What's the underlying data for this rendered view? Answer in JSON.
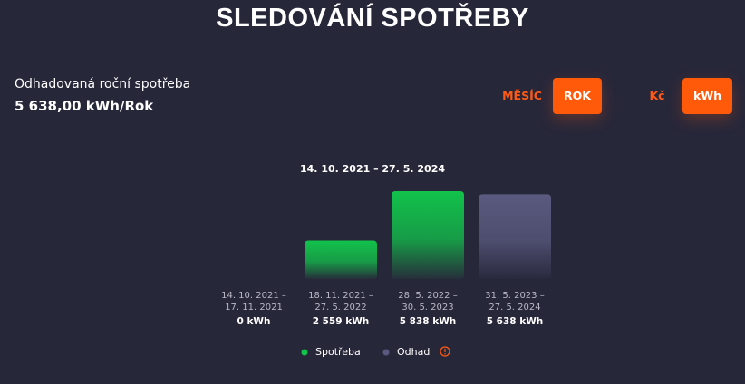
{
  "header": {
    "title": "SLEDOVÁNÍ SPOTŘEBY"
  },
  "summary": {
    "label": "Odhadovaná roční spotřeba",
    "value": "5 638,00 kWh/Rok"
  },
  "toggles": [
    [
      {
        "label": "MĚSÍC",
        "active": false
      },
      {
        "label": "ROK",
        "active": true
      }
    ],
    [
      {
        "label": "Kč",
        "active": false
      },
      {
        "label": "kWh",
        "active": true
      }
    ]
  ],
  "chart_data": {
    "type": "bar",
    "subtitle": "14. 10. 2021 – 27. 5. 2024",
    "categories": [
      "14. 10. 2021 –\n17. 11. 2021",
      "18. 11. 2021 –\n27. 5. 2022",
      "28. 5. 2022 –\n30. 5. 2023",
      "31. 5. 2023 –\n27. 5. 2024"
    ],
    "series": [
      {
        "name": "Spotřeba",
        "color": "#12c24b",
        "values": [
          0,
          2559,
          5838,
          null
        ],
        "value_labels": [
          "0 kWh",
          "2 559 kWh",
          "5 838 kWh",
          null
        ]
      },
      {
        "name": "Odhad",
        "color": "#5a5a80",
        "values": [
          null,
          null,
          null,
          5638
        ],
        "value_labels": [
          null,
          null,
          null,
          "5 638 kWh"
        ]
      }
    ]
  }
}
